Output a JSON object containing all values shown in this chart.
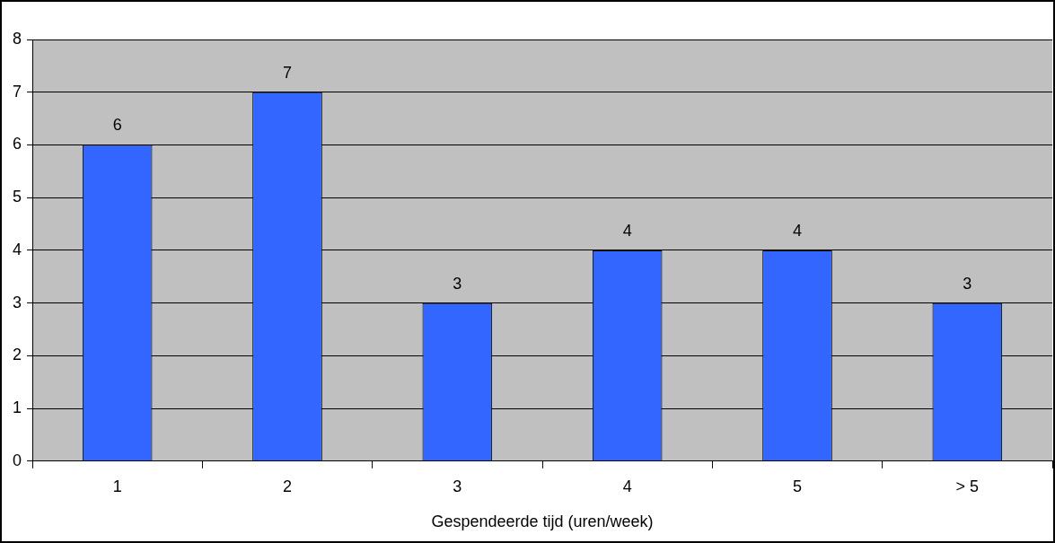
{
  "chart_data": {
    "type": "bar",
    "xlabel": "Gespendeerde tijd (uren/week)",
    "categories": [
      "1",
      "2",
      "3",
      "4",
      "5",
      "> 5"
    ],
    "values": [
      6,
      7,
      3,
      4,
      4,
      3
    ],
    "color": "#3366ff",
    "ylim": [
      0,
      8
    ],
    "yticks": [
      0,
      1,
      2,
      3,
      4,
      5,
      6,
      7,
      8
    ],
    "grid": "y",
    "data_labels": true
  }
}
